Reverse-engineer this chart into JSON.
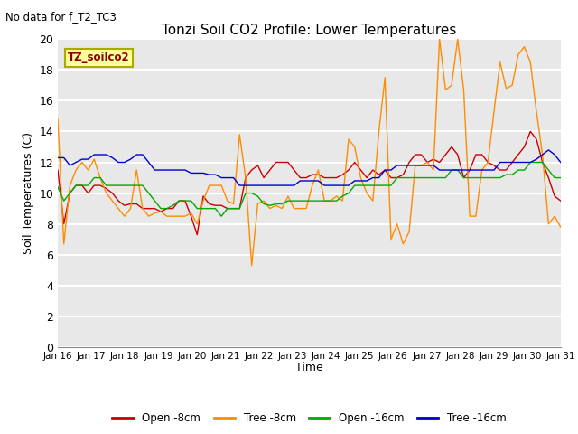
{
  "title": "Tonzi Soil CO2 Profile: Lower Temperatures",
  "subtitle": "No data for f_T2_TC3",
  "ylabel": "Soil Temperatures (C)",
  "xlabel": "Time",
  "legend_label": "TZ_soilco2",
  "ylim": [
    0,
    20
  ],
  "yticks": [
    0,
    2,
    4,
    6,
    8,
    10,
    12,
    14,
    16,
    18,
    20
  ],
  "xtick_labels": [
    "Jan 16",
    "Jan 17",
    "Jan 18",
    "Jan 19",
    "Jan 20",
    "Jan 21",
    "Jan 22",
    "Jan 23",
    "Jan 24",
    "Jan 25",
    "Jan 26",
    "Jan 27",
    "Jan 28",
    "Jan 29",
    "Jan 30",
    "Jan 31"
  ],
  "bg_color": "#e8e8e8",
  "grid_color": "#ffffff",
  "series_order": [
    "open_8cm",
    "tree_8cm",
    "open_16cm",
    "tree_16cm"
  ],
  "series": {
    "open_8cm": {
      "color": "#cc0000",
      "label": "Open -8cm",
      "values": [
        11.5,
        8.0,
        10.0,
        10.5,
        10.5,
        10.0,
        10.5,
        10.5,
        10.3,
        10.0,
        9.5,
        9.2,
        9.3,
        9.3,
        9.0,
        9.0,
        9.0,
        8.8,
        9.0,
        9.0,
        9.5,
        9.5,
        8.5,
        7.3,
        9.8,
        9.3,
        9.2,
        9.2,
        9.0,
        9.0,
        9.0,
        11.0,
        11.5,
        11.8,
        11.0,
        11.5,
        12.0,
        12.0,
        12.0,
        11.5,
        11.0,
        11.0,
        11.2,
        11.2,
        11.0,
        11.0,
        11.0,
        11.2,
        11.5,
        12.0,
        11.5,
        11.0,
        11.5,
        11.2,
        11.5,
        11.0,
        11.0,
        11.2,
        12.0,
        12.5,
        12.5,
        12.0,
        12.2,
        12.0,
        12.5,
        13.0,
        12.5,
        11.0,
        11.5,
        12.5,
        12.5,
        12.0,
        11.8,
        11.5,
        11.5,
        12.0,
        12.5,
        13.0,
        14.0,
        13.5,
        12.0,
        11.0,
        9.8,
        9.5
      ]
    },
    "tree_8cm": {
      "color": "#ff8c00",
      "label": "Tree -8cm",
      "values": [
        14.8,
        6.7,
        10.5,
        11.5,
        12.0,
        11.5,
        12.2,
        11.0,
        10.0,
        9.5,
        9.0,
        8.5,
        9.0,
        11.5,
        9.0,
        8.5,
        8.7,
        8.8,
        8.5,
        8.5,
        8.5,
        8.5,
        8.7,
        8.0,
        9.5,
        10.5,
        10.5,
        10.5,
        9.5,
        9.3,
        13.8,
        11.0,
        5.3,
        9.3,
        9.5,
        9.0,
        9.2,
        9.0,
        9.8,
        9.0,
        9.0,
        9.0,
        10.5,
        11.5,
        9.5,
        9.5,
        9.8,
        9.5,
        13.5,
        13.0,
        11.0,
        10.0,
        9.5,
        14.0,
        17.5,
        7.0,
        8.0,
        6.7,
        7.5,
        11.8,
        11.8,
        12.0,
        11.5,
        20.0,
        16.7,
        17.0,
        20.0,
        16.7,
        8.5,
        8.5,
        11.5,
        12.0,
        15.3,
        18.5,
        16.8,
        17.0,
        19.0,
        19.5,
        18.5,
        15.3,
        12.5,
        8.0,
        8.5,
        7.8
      ]
    },
    "open_16cm": {
      "color": "#00aa00",
      "label": "Open -16cm",
      "values": [
        10.4,
        9.5,
        10.0,
        10.5,
        10.5,
        10.5,
        11.0,
        11.0,
        10.5,
        10.5,
        10.5,
        10.5,
        10.5,
        10.5,
        10.5,
        10.0,
        9.5,
        9.0,
        9.0,
        9.2,
        9.5,
        9.5,
        9.5,
        9.0,
        9.0,
        9.0,
        9.0,
        8.5,
        9.0,
        9.0,
        9.0,
        10.0,
        10.0,
        9.8,
        9.3,
        9.2,
        9.3,
        9.3,
        9.5,
        9.5,
        9.5,
        9.5,
        9.5,
        9.5,
        9.5,
        9.5,
        9.5,
        9.8,
        10.0,
        10.5,
        10.5,
        10.5,
        10.5,
        10.5,
        10.5,
        10.5,
        11.0,
        11.0,
        11.0,
        11.0,
        11.0,
        11.0,
        11.0,
        11.0,
        11.0,
        11.5,
        11.5,
        11.0,
        11.0,
        11.0,
        11.0,
        11.0,
        11.0,
        11.0,
        11.2,
        11.2,
        11.5,
        11.5,
        12.0,
        12.0,
        12.0,
        11.5,
        11.0,
        11.0
      ]
    },
    "tree_16cm": {
      "color": "#0000cc",
      "label": "Tree -16cm",
      "values": [
        12.3,
        12.3,
        11.8,
        12.0,
        12.2,
        12.2,
        12.5,
        12.5,
        12.5,
        12.3,
        12.0,
        12.0,
        12.2,
        12.5,
        12.5,
        12.0,
        11.5,
        11.5,
        11.5,
        11.5,
        11.5,
        11.5,
        11.3,
        11.3,
        11.3,
        11.2,
        11.2,
        11.0,
        11.0,
        11.0,
        10.5,
        10.5,
        10.5,
        10.5,
        10.5,
        10.5,
        10.5,
        10.5,
        10.5,
        10.5,
        10.8,
        10.8,
        10.8,
        10.8,
        10.5,
        10.5,
        10.5,
        10.5,
        10.5,
        10.8,
        10.8,
        10.8,
        11.0,
        11.0,
        11.5,
        11.5,
        11.8,
        11.8,
        11.8,
        11.8,
        11.8,
        11.8,
        11.8,
        11.5,
        11.5,
        11.5,
        11.5,
        11.5,
        11.5,
        11.5,
        11.5,
        11.5,
        11.5,
        12.0,
        12.0,
        12.0,
        12.0,
        12.0,
        12.0,
        12.2,
        12.5,
        12.8,
        12.5,
        12.0
      ]
    }
  }
}
